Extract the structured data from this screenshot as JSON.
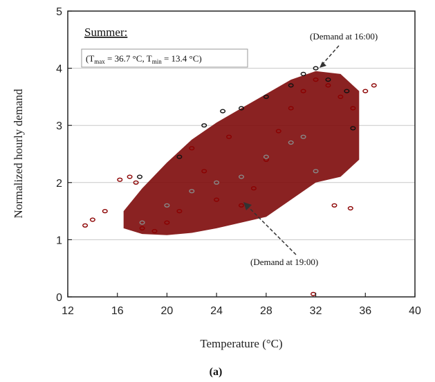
{
  "chart_data": {
    "type": "scatter",
    "title": "Summer:",
    "subtitle_parts": {
      "open": "(T",
      "max_sub": "max",
      "mid": " = 36.7 °C, T",
      "min_sub": "min",
      "close": " = 13.4 °C)"
    },
    "xlabel": "Temperature (°C)",
    "ylabel": "Normalized hourly demand",
    "panel_label": "(a)",
    "xlim": [
      12,
      40
    ],
    "ylim": [
      0,
      5
    ],
    "xticks": [
      "12",
      "16",
      "20",
      "24",
      "28",
      "32",
      "36",
      "40"
    ],
    "yticks": [
      "0",
      "1",
      "2",
      "3",
      "4",
      "5"
    ],
    "grid": "horizontal",
    "series": [
      {
        "color": "#8b0000",
        "marker": "open-circle",
        "points": [
          [
            13.4,
            1.25
          ],
          [
            14.0,
            1.35
          ],
          [
            15.0,
            1.5
          ],
          [
            16.2,
            2.05
          ],
          [
            17.0,
            2.1
          ],
          [
            17.5,
            2.0
          ],
          [
            18.0,
            1.2
          ],
          [
            19.0,
            1.15
          ],
          [
            20.0,
            1.3
          ],
          [
            21.0,
            1.5
          ],
          [
            22.0,
            2.6
          ],
          [
            23.0,
            2.2
          ],
          [
            24.0,
            1.7
          ],
          [
            25.0,
            2.8
          ],
          [
            26.0,
            1.6
          ],
          [
            27.0,
            1.9
          ],
          [
            28.0,
            2.4
          ],
          [
            29.0,
            2.9
          ],
          [
            30.0,
            3.3
          ],
          [
            31.0,
            3.6
          ],
          [
            32.0,
            3.8
          ],
          [
            33.0,
            3.7
          ],
          [
            34.0,
            3.5
          ],
          [
            35.0,
            3.3
          ],
          [
            36.0,
            3.6
          ],
          [
            36.7,
            3.7
          ],
          [
            33.5,
            1.6
          ],
          [
            34.8,
            1.55
          ],
          [
            31.8,
            0.05
          ]
        ]
      },
      {
        "color": "#111111",
        "marker": "open-circle",
        "points": [
          [
            17.8,
            2.1
          ],
          [
            21.0,
            2.45
          ],
          [
            23.0,
            3.0
          ],
          [
            24.5,
            3.25
          ],
          [
            26.0,
            3.3
          ],
          [
            28.0,
            3.5
          ],
          [
            30.0,
            3.7
          ],
          [
            31.0,
            3.9
          ],
          [
            32.0,
            4.0
          ],
          [
            33.0,
            3.8
          ],
          [
            34.5,
            3.6
          ],
          [
            35.0,
            2.95
          ]
        ]
      },
      {
        "color": "#888888",
        "marker": "open-circle",
        "points": [
          [
            18.0,
            1.3
          ],
          [
            20.0,
            1.6
          ],
          [
            22.0,
            1.85
          ],
          [
            24.0,
            2.0
          ],
          [
            26.0,
            2.1
          ],
          [
            28.0,
            2.45
          ],
          [
            30.0,
            2.7
          ],
          [
            31.0,
            2.8
          ],
          [
            32.0,
            2.2
          ]
        ]
      }
    ],
    "annotations": [
      {
        "text": "(Demand at 16:00)",
        "x": 32.0,
        "y": 4.0
      },
      {
        "text": "(Demand at 19:00)",
        "x": 26.5,
        "y": 1.75
      }
    ]
  }
}
